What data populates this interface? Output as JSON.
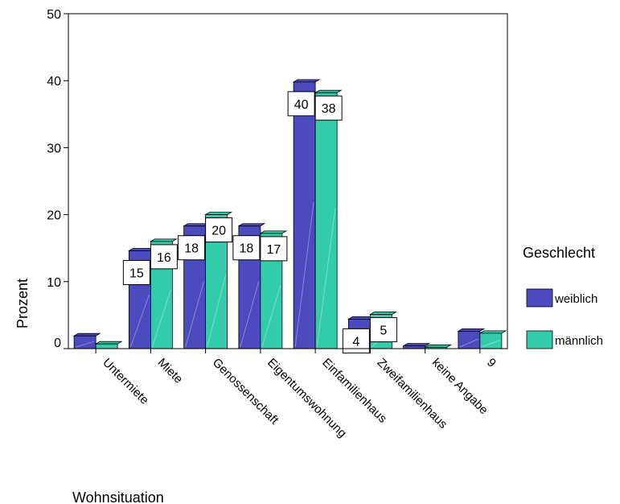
{
  "chart_data": {
    "type": "bar",
    "title": "",
    "xlabel": "Wohnsituation",
    "ylabel": "Prozent",
    "ylim": [
      0,
      50
    ],
    "yticks": [
      "0",
      "10",
      "20",
      "30",
      "40",
      "50"
    ],
    "categories": [
      "Untermiete",
      "Miete",
      "Genossenschaft",
      "Eigentumswohnung",
      "Einfamilienhaus",
      "Zweifamilienhaus",
      "keine Angabe",
      "9"
    ],
    "legend": {
      "title": "Geschlecht",
      "placement": "right"
    },
    "series": [
      {
        "name": "weiblich",
        "color": "#4b4bbf",
        "values": [
          1.9,
          14.6,
          18.3,
          18.3,
          39.8,
          4.4,
          0.4,
          2.6
        ],
        "data_labels": [
          "",
          "15",
          "18",
          "18",
          "40",
          "4",
          "",
          ""
        ]
      },
      {
        "name": "männlich",
        "color": "#33ccaa",
        "values": [
          0.7,
          16.0,
          20.0,
          17.2,
          38.2,
          5.1,
          0.2,
          2.3
        ],
        "data_labels": [
          "",
          "16",
          "20",
          "17",
          "38",
          "5",
          "",
          ""
        ]
      }
    ],
    "grid": false
  }
}
